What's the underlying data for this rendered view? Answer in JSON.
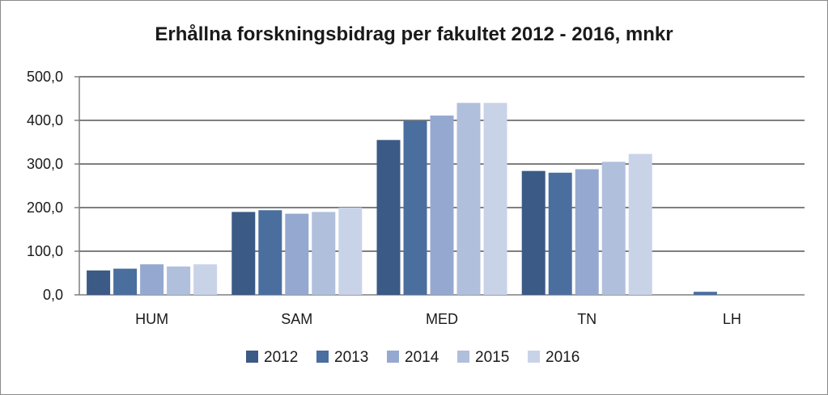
{
  "chart_data": {
    "type": "bar",
    "title": "Erhållna forskningsbidrag per fakultet 2012 - 2016, mnkr",
    "xlabel": "",
    "ylabel": "",
    "categories": [
      "HUM",
      "SAM",
      "MED",
      "TN",
      "LH"
    ],
    "series": [
      {
        "name": "2012",
        "color": "#3b5a85",
        "values": [
          56,
          190,
          355,
          284,
          0
        ]
      },
      {
        "name": "2013",
        "color": "#4a6e9e",
        "values": [
          60,
          194,
          399,
          280,
          7
        ]
      },
      {
        "name": "2014",
        "color": "#95a9d0",
        "values": [
          70,
          186,
          411,
          288,
          0
        ]
      },
      {
        "name": "2015",
        "color": "#b0bfdc",
        "values": [
          65,
          190,
          440,
          305,
          0
        ]
      },
      {
        "name": "2016",
        "color": "#c9d3e8",
        "values": [
          70,
          200,
          440,
          323,
          0
        ]
      }
    ],
    "ylim": [
      0,
      500
    ],
    "yticks": [
      0,
      100,
      200,
      300,
      400,
      500
    ],
    "ytick_labels": [
      "0,0",
      "100,0",
      "200,0",
      "300,0",
      "400,0",
      "500,0"
    ],
    "grid": true,
    "legend_position": "bottom"
  }
}
